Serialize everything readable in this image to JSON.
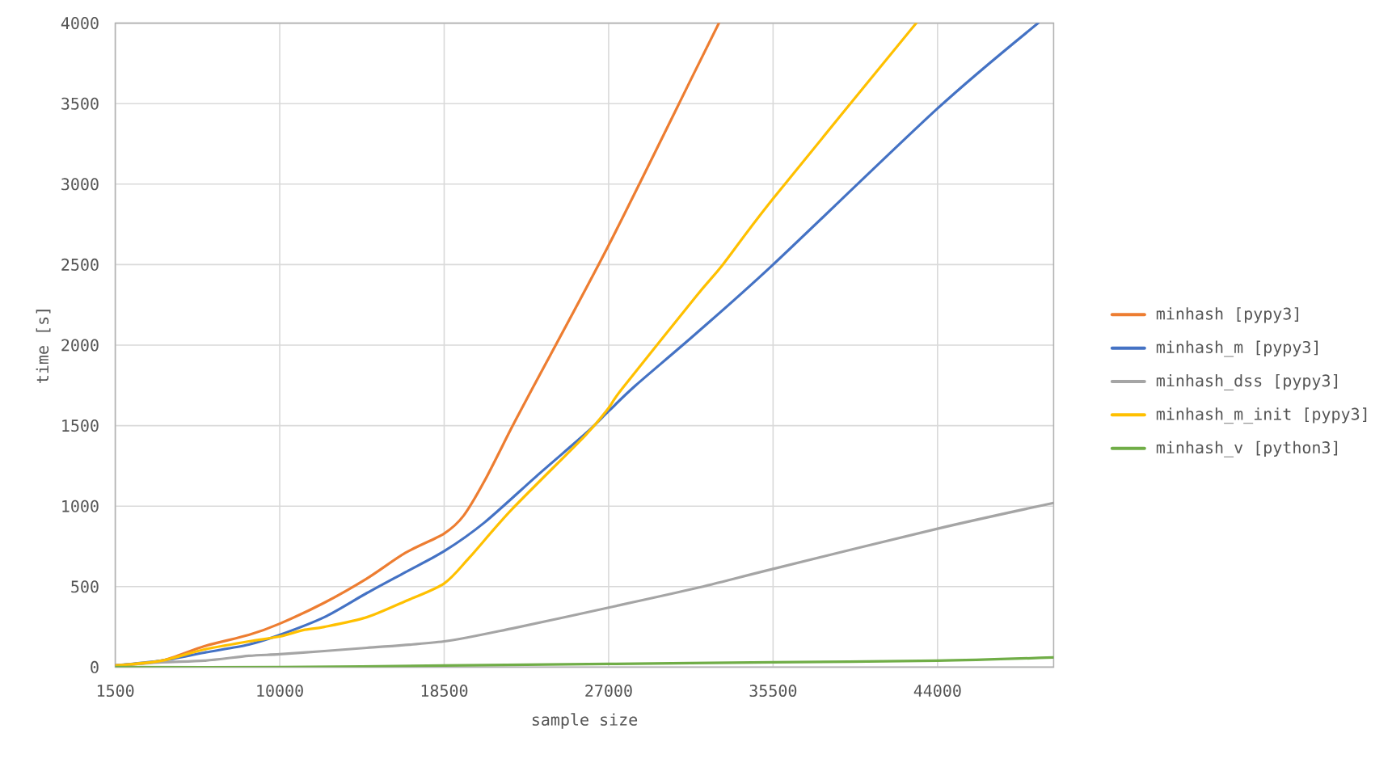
{
  "chart_data": {
    "type": "line",
    "xlabel": "sample size",
    "ylabel": "time [s]",
    "xlim": [
      1500,
      50000
    ],
    "xticks": [
      1500,
      10000,
      18500,
      27000,
      35500,
      44000
    ],
    "ylim": [
      0,
      4000
    ],
    "yticks": [
      0,
      500,
      1000,
      1500,
      2000,
      2500,
      3000,
      3500,
      4000
    ],
    "grid": true,
    "legend": "right",
    "series": [
      {
        "name": "minhash [pypy3]",
        "color": "#ed7d31",
        "x": [
          1500,
          3900,
          6100,
          8400,
          10000,
          12300,
          14500,
          16500,
          18500,
          19500,
          20600,
          22000,
          23100,
          27000,
          31500,
          32700
        ],
        "values": [
          10,
          40,
          130,
          200,
          270,
          400,
          550,
          710,
          830,
          940,
          1160,
          1490,
          1740,
          2620,
          3710,
          4000
        ]
      },
      {
        "name": "minhash_m [pypy3]",
        "color": "#4472c4",
        "x": [
          1500,
          3900,
          6100,
          8400,
          10000,
          12300,
          14500,
          16500,
          18500,
          20600,
          23400,
          25800,
          27000,
          28400,
          31500,
          35500,
          44000,
          49200
        ],
        "values": [
          10,
          40,
          90,
          140,
          200,
          310,
          460,
          590,
          720,
          900,
          1200,
          1450,
          1590,
          1750,
          2070,
          2500,
          3470,
          4000
        ]
      },
      {
        "name": "minhash_dss [pypy3]",
        "color": "#a5a5a5",
        "x": [
          1500,
          3900,
          6100,
          8400,
          10000,
          12300,
          14500,
          18500,
          22000,
          27000,
          31500,
          35500,
          44000,
          50000
        ],
        "values": [
          10,
          30,
          40,
          70,
          80,
          100,
          120,
          160,
          240,
          370,
          490,
          610,
          860,
          1020
        ]
      },
      {
        "name": "minhash_m_init [pypy3]",
        "color": "#ffc000",
        "x": [
          1500,
          3900,
          6100,
          8400,
          10000,
          11200,
          12300,
          14500,
          16500,
          18500,
          19800,
          22000,
          25800,
          27000,
          27700,
          31500,
          32900,
          35500,
          42900
        ],
        "values": [
          10,
          40,
          110,
          160,
          190,
          230,
          250,
          310,
          410,
          520,
          680,
          980,
          1440,
          1610,
          1730,
          2300,
          2500,
          2910,
          4000
        ]
      },
      {
        "name": "minhash_v [python3]",
        "color": "#70ad47",
        "x": [
          1500,
          10000,
          18500,
          27000,
          35500,
          44000,
          50000
        ],
        "values": [
          0,
          0,
          10,
          20,
          30,
          40,
          60
        ]
      }
    ]
  }
}
